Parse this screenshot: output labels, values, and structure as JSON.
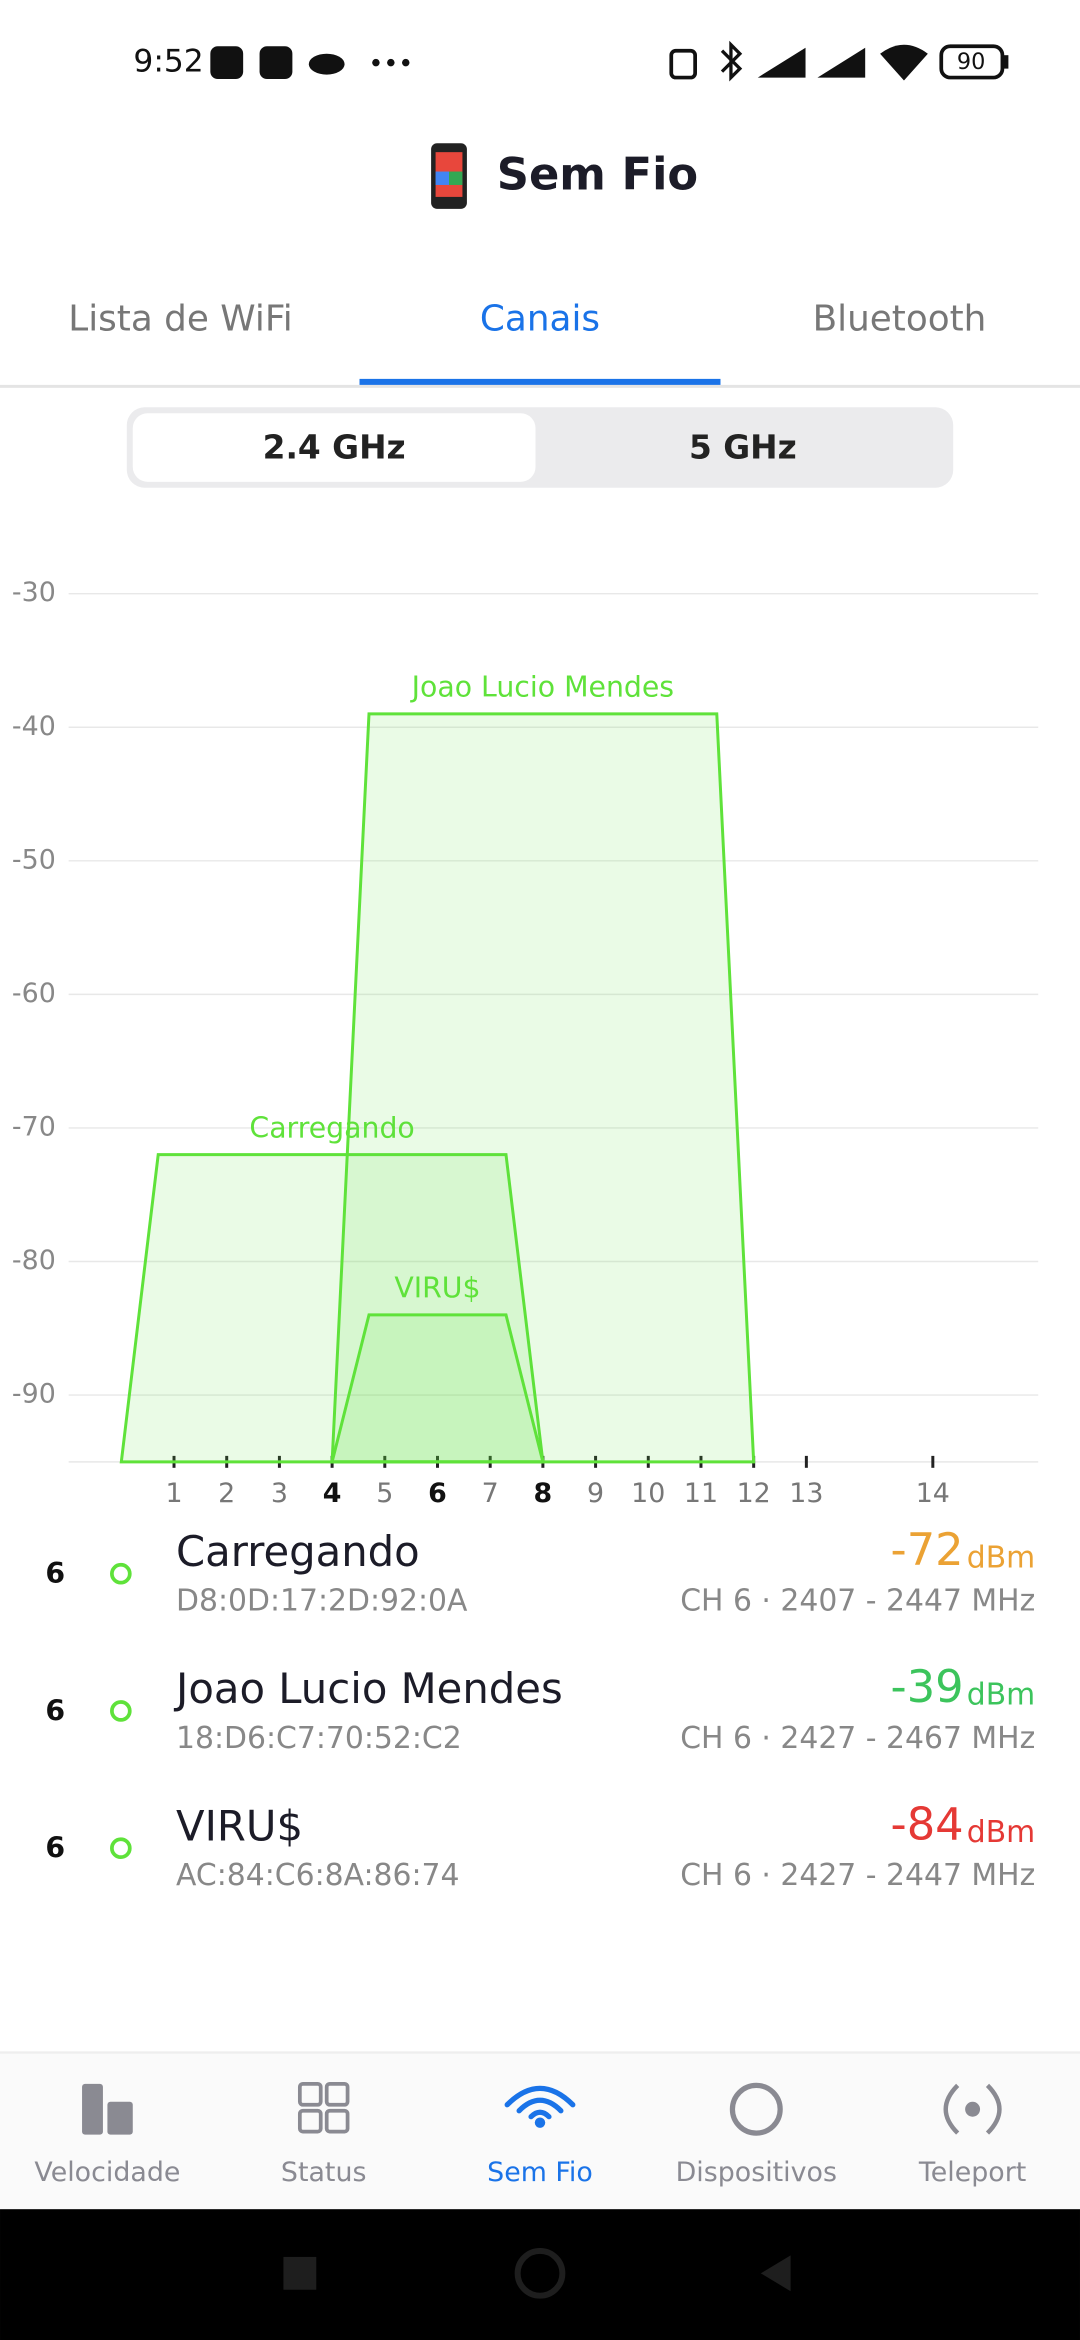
{
  "status_bar": {
    "time": "9:52",
    "battery": "90"
  },
  "header": {
    "title": "Sem Fio"
  },
  "tabs": {
    "items": [
      "Lista de WiFi",
      "Canais",
      "Bluetooth"
    ],
    "active": 1
  },
  "bands": {
    "items": [
      "2.4 GHz",
      "5 GHz"
    ],
    "active": 0
  },
  "chart": {
    "type": "channel-area",
    "color": "#5fe23a",
    "ylim": [
      -95,
      -30
    ],
    "yticks": [
      -30,
      -40,
      -50,
      -60,
      -70,
      -80,
      -90
    ],
    "xlim": [
      2402,
      2494
    ],
    "xticks": [
      {
        "value": 2412,
        "label": "1"
      },
      {
        "value": 2417,
        "label": "2"
      },
      {
        "value": 2422,
        "label": "3"
      },
      {
        "value": 2427,
        "label": "4"
      },
      {
        "value": 2432,
        "label": "5"
      },
      {
        "value": 2437,
        "label": "6"
      },
      {
        "value": 2442,
        "label": "7"
      },
      {
        "value": 2447,
        "label": "8"
      },
      {
        "value": 2452,
        "label": "9"
      },
      {
        "value": 2457,
        "label": "10"
      },
      {
        "value": 2462,
        "label": "11"
      },
      {
        "value": 2467,
        "label": "12"
      },
      {
        "value": 2472,
        "label": "13"
      },
      {
        "value": 2484,
        "label": "14"
      }
    ],
    "emphasized_xticks": [
      2427,
      2437,
      2447
    ],
    "grid": true
  },
  "networks": [
    {
      "channel": 6,
      "name": "Carregando",
      "mac": "D8:0D:17:2D:92:0A",
      "signal": -72,
      "signal_unit": "dBm",
      "signal_color": "#eba234",
      "freq_start": 2407,
      "freq_end": 2447,
      "channel_label": "CH 6 · 2407 - 2447 MHz"
    },
    {
      "channel": 6,
      "name": "Joao Lucio Mendes",
      "mac": "18:D6:C7:70:52:C2",
      "signal": -39,
      "signal_unit": "dBm",
      "signal_color": "#3cc45c",
      "freq_start": 2427,
      "freq_end": 2467,
      "channel_label": "CH 6 · 2427 - 2467 MHz"
    },
    {
      "channel": 6,
      "name": "VIRU$",
      "mac": "AC:84:C6:8A:86:74",
      "signal": -84,
      "signal_unit": "dBm",
      "signal_color": "#e53935",
      "freq_start": 2427,
      "freq_end": 2447,
      "channel_label": "CH 6 · 2427 - 2447 MHz"
    }
  ],
  "bottom_nav": {
    "items": [
      "Velocidade",
      "Status",
      "Sem Fio",
      "Dispositivos",
      "Teleport"
    ],
    "active": 2
  }
}
